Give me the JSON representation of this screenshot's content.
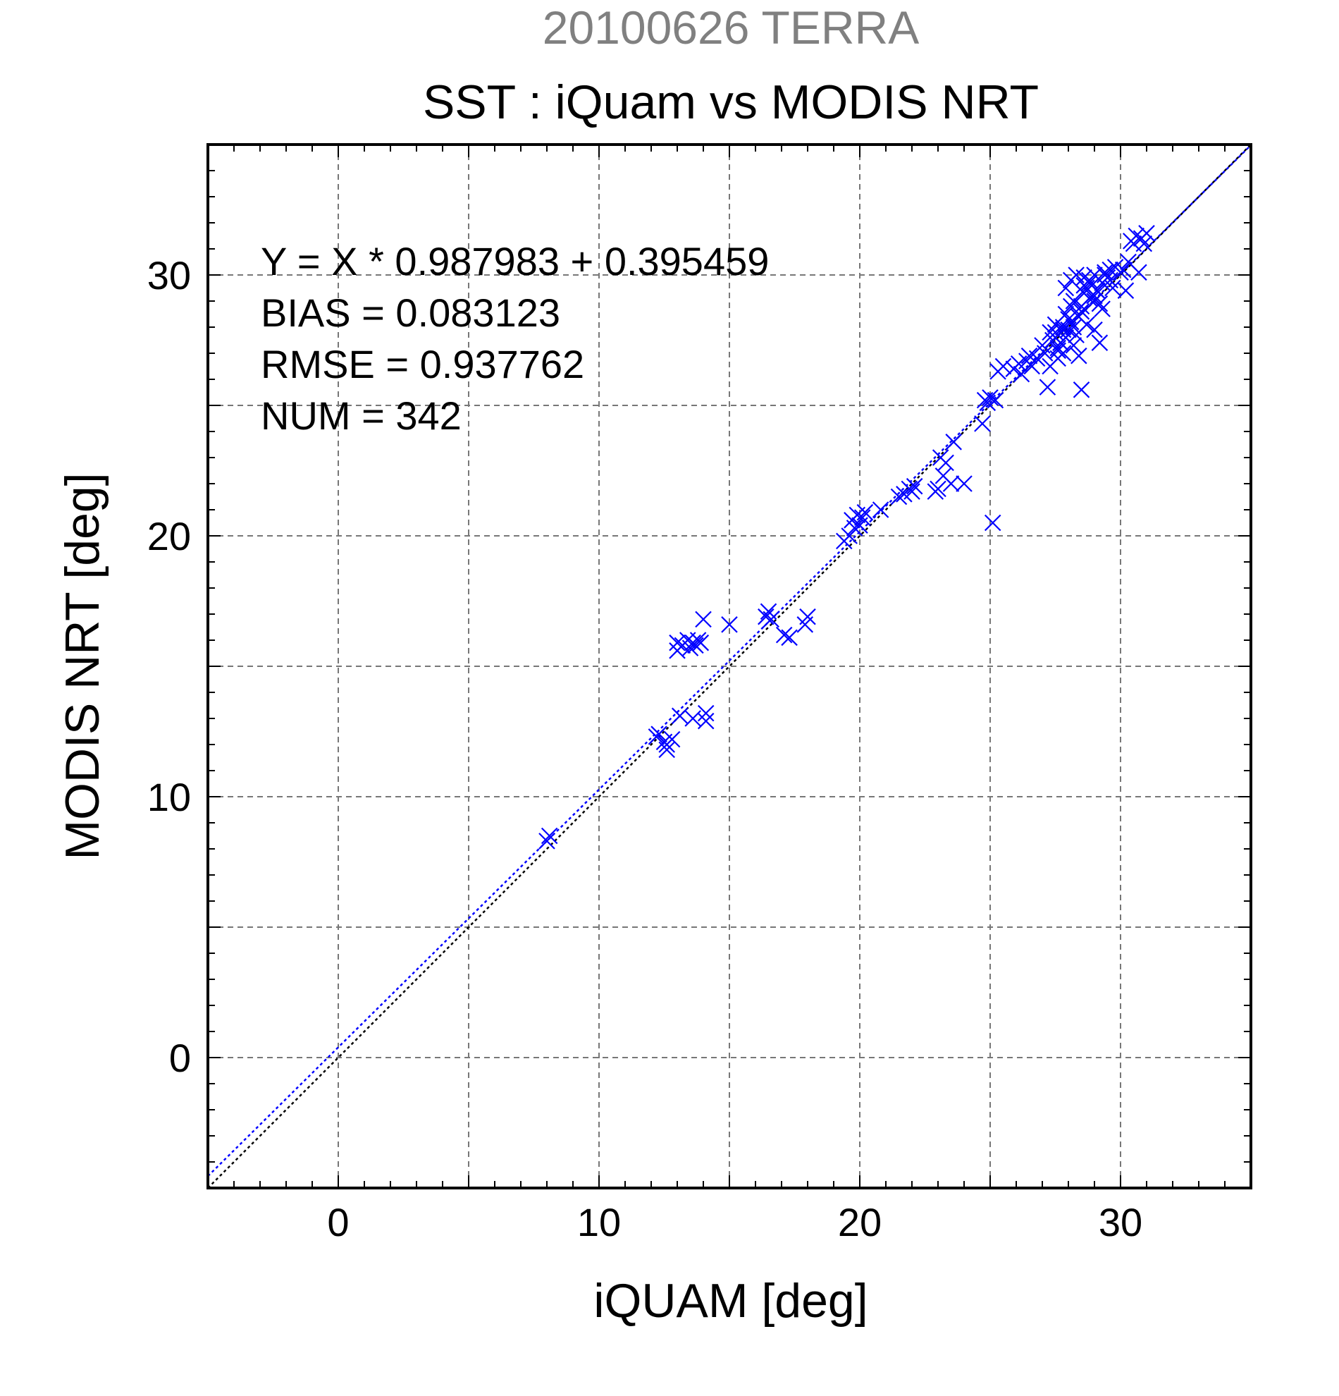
{
  "chart_data": {
    "type": "scatter",
    "supertitle": "20100626 TERRA",
    "title": "SST : iQuam vs MODIS NRT",
    "xlabel": "iQUAM [deg]",
    "ylabel": "MODIS NRT [deg]",
    "xlim": [
      -5,
      35
    ],
    "ylim": [
      -5,
      35
    ],
    "xticks": [
      0,
      10,
      20,
      30
    ],
    "yticks": [
      0,
      10,
      20,
      30
    ],
    "grid": true,
    "annotations": [
      "Y = X * 0.987983 + 0.395459",
      "BIAS = 0.083123",
      "RMSE = 0.937762",
      "NUM = 342"
    ],
    "fit": {
      "slope": 0.987983,
      "intercept": 0.395459
    },
    "colors": {
      "series": "#0000ff",
      "identity": "#000000",
      "fit": "#0000ff",
      "supertitle": "#808080"
    },
    "series": [
      {
        "marker": "x",
        "x": [
          8.0,
          8.1,
          12.2,
          12.3,
          12.5,
          12.6,
          12.6,
          12.8,
          13.0,
          13.0,
          13.1,
          13.2,
          13.4,
          13.5,
          13.6,
          13.6,
          13.7,
          13.8,
          13.9,
          14.0,
          14.1,
          14.1,
          15.0,
          16.4,
          16.5,
          16.6,
          17.1,
          17.3,
          17.9,
          18.0,
          19.4,
          19.6,
          19.7,
          19.8,
          19.9,
          20.0,
          20.1,
          20.2,
          20.8,
          21.5,
          21.7,
          21.9,
          22.0,
          22.1,
          22.9,
          23.0,
          23.1,
          23.2,
          23.3,
          23.5,
          23.6,
          24.0,
          24.7,
          24.8,
          24.9,
          25.0,
          25.1,
          25.2,
          25.3,
          25.5,
          25.9,
          26.1,
          26.2,
          26.4,
          26.5,
          26.6,
          26.8,
          27.0,
          27.1,
          27.2,
          27.3,
          27.4,
          27.5,
          27.6,
          27.7,
          27.8,
          27.9,
          28.0,
          28.1,
          28.2,
          27.3,
          27.5,
          27.6,
          27.8,
          27.9,
          28.1,
          28.2,
          28.4,
          28.5,
          28.6,
          28.7,
          28.8,
          28.9,
          29.0,
          29.1,
          29.2,
          29.3,
          29.4,
          29.5,
          29.6,
          27.9,
          28.1,
          28.3,
          28.4,
          28.6,
          28.7,
          28.9,
          29.0,
          29.1,
          29.2,
          28.5,
          28.8,
          29.0,
          29.3,
          30.1,
          30.3,
          30.4,
          30.5,
          30.6,
          30.8,
          30.9,
          31.0,
          30.7,
          27.6,
          27.7,
          27.8,
          28.0,
          28.2,
          28.3,
          28.5,
          28.6,
          28.8,
          29.0,
          29.4,
          29.6,
          29.7,
          29.8,
          30.0,
          30.2
        ],
        "y": [
          8.3,
          8.5,
          12.3,
          12.4,
          12.1,
          12.0,
          11.8,
          12.2,
          15.6,
          15.9,
          13.1,
          15.8,
          16.0,
          15.7,
          15.9,
          13.0,
          15.8,
          16.0,
          15.9,
          16.8,
          13.2,
          12.9,
          16.6,
          16.9,
          17.1,
          16.8,
          16.2,
          16.1,
          16.6,
          16.9,
          19.8,
          20.0,
          20.6,
          20.3,
          20.8,
          20.4,
          20.7,
          20.9,
          21.0,
          21.5,
          21.6,
          21.8,
          21.7,
          21.9,
          21.7,
          21.8,
          23.0,
          22.3,
          22.8,
          22.0,
          23.6,
          22.0,
          24.3,
          25.2,
          25.1,
          25.3,
          20.5,
          25.2,
          26.3,
          26.5,
          26.4,
          26.6,
          26.2,
          26.7,
          26.9,
          26.5,
          26.8,
          27.3,
          27.0,
          25.7,
          26.5,
          27.5,
          27.8,
          27.1,
          27.4,
          28.0,
          27.6,
          27.9,
          28.2,
          27.3,
          27.8,
          28.1,
          26.8,
          27.0,
          28.5,
          28.8,
          29.0,
          26.9,
          25.6,
          29.3,
          29.5,
          29.8,
          29.6,
          30.0,
          29.4,
          28.9,
          29.7,
          30.1,
          29.9,
          30.2,
          29.5,
          29.8,
          30.0,
          28.4,
          29.6,
          28.1,
          29.2,
          29.0,
          29.4,
          27.4,
          28.8,
          29.1,
          27.9,
          28.7,
          30.2,
          30.5,
          31.3,
          31.2,
          31.5,
          31.4,
          31.2,
          31.6,
          30.1,
          27.2,
          27.4,
          27.9,
          28.3,
          28.0,
          27.7,
          28.6,
          29.9,
          29.7,
          29.2,
          30.0,
          29.8,
          29.5,
          30.3,
          30.1,
          29.4
        ]
      }
    ]
  }
}
